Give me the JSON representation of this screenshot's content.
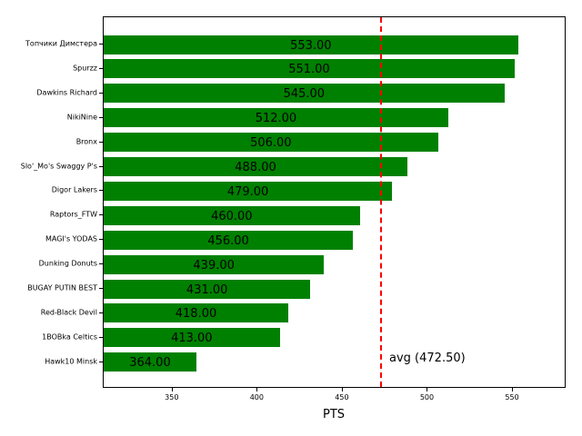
{
  "chart_data": {
    "type": "bar",
    "orientation": "horizontal",
    "title": "",
    "xlabel": "PTS",
    "ylabel": "",
    "xlim": [
      309.5,
      581.5
    ],
    "xticks": [
      350,
      400,
      450,
      500,
      550
    ],
    "xtick_labels": [
      "350",
      "400",
      "450",
      "500",
      "550"
    ],
    "grid": false,
    "bar_color": "#008000",
    "categories": [
      "Топчики Димстера",
      "Spurzz",
      "Dawkins Richard",
      "NikiNine",
      "Bronx",
      "Slo'_Mo's Swaggy P's",
      "Digor Lakers",
      "Raptors_FTW",
      "MAGI's YODAS",
      "Dunking Donuts",
      "BUGAY PUTIN BEST",
      "Red-Black Devil",
      "1BOBka Celtics",
      "Hawk10 Minsk"
    ],
    "values": [
      553.0,
      551.0,
      545.0,
      512.0,
      506.0,
      488.0,
      479.0,
      460.0,
      456.0,
      439.0,
      431.0,
      418.0,
      413.0,
      364.0
    ],
    "value_labels": [
      "553.00",
      "551.00",
      "545.00",
      "512.00",
      "506.00",
      "488.00",
      "479.00",
      "460.00",
      "456.00",
      "439.00",
      "431.00",
      "418.00",
      "413.00",
      "364.00"
    ],
    "reference_line": {
      "value": 472.5,
      "label": "avg (472.50)",
      "color": "#ff0000",
      "style": "dashed"
    }
  }
}
